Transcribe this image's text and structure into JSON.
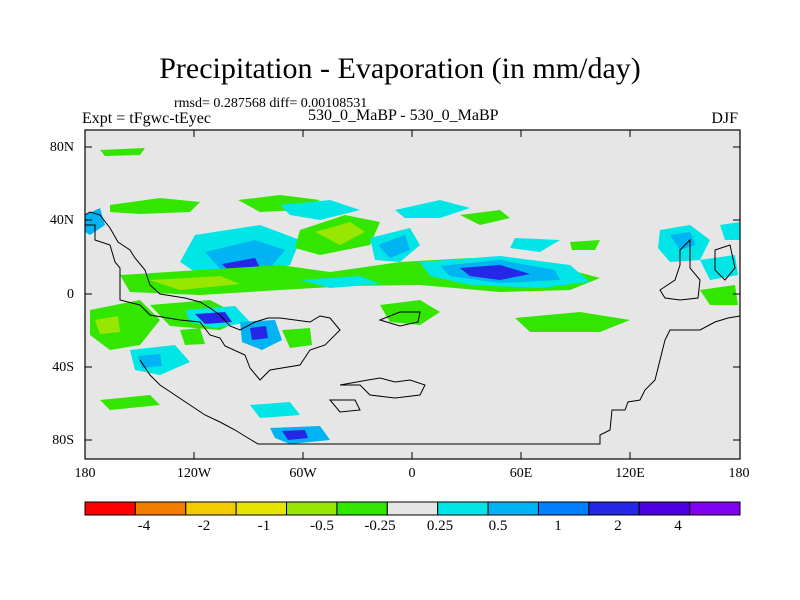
{
  "title": "Precipitation - Evaporation (in mm/day)",
  "stats": "rmsd= 0.287568 diff= 0.00108531",
  "left_label": "Expt = tFgwc-tEyec",
  "center_label": "530_0_MaBP - 530_0_MaBP",
  "right_label": "DJF",
  "axes": {
    "lat_ticks": [
      "80N",
      "40N",
      "0",
      "40S",
      "80S"
    ],
    "lon_ticks": [
      "180",
      "120W",
      "60W",
      "0",
      "60E",
      "120E",
      "180"
    ]
  },
  "colorbar": {
    "colors": [
      "#ff0000",
      "#f27d00",
      "#f2cc00",
      "#e5e500",
      "#99e600",
      "#33e600",
      "#e6e6e6",
      "#00e6e6",
      "#00b3f2",
      "#0080ff",
      "#2626e6",
      "#4d00e6",
      "#8000f2"
    ],
    "labels": [
      "-4",
      "-2",
      "-1",
      "-0.5",
      "-0.25",
      "0.25",
      "0.5",
      "1",
      "2",
      "4"
    ]
  },
  "colors": {
    "background": "#e6e6e6",
    "positive_weak": "#00e6e6",
    "positive_mid": "#00b3f2",
    "positive_strong": "#2626e6",
    "negative_weak": "#33e600",
    "negative_mid": "#99e600"
  }
}
